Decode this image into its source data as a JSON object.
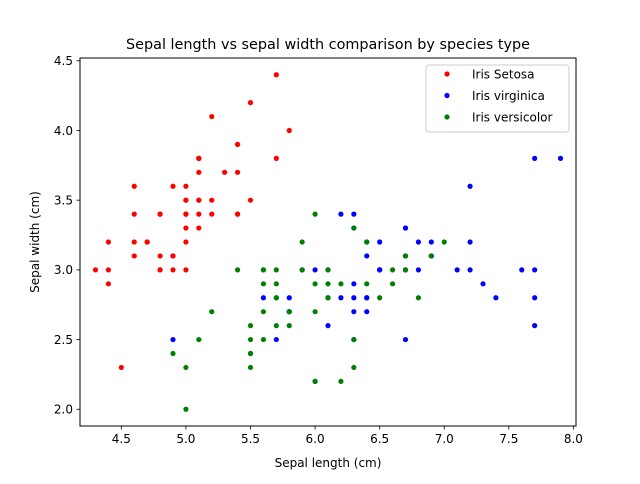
{
  "chart_data": {
    "type": "scatter",
    "title": "Sepal length vs sepal width comparison by species type",
    "xlabel": "Sepal length (cm)",
    "ylabel": "Sepal width (cm)",
    "xlim": [
      4.18,
      8.02
    ],
    "ylim": [
      1.88,
      4.52
    ],
    "xticks": [
      4.5,
      5.0,
      5.5,
      6.0,
      6.5,
      7.0,
      7.5,
      8.0
    ],
    "xtick_labels": [
      "4.5",
      "5.0",
      "5.5",
      "6.0",
      "6.5",
      "7.0",
      "7.5",
      "8.0"
    ],
    "yticks": [
      2.0,
      2.5,
      3.0,
      3.5,
      4.0,
      4.5
    ],
    "ytick_labels": [
      "2.0",
      "2.5",
      "3.0",
      "3.5",
      "4.0",
      "4.5"
    ],
    "grid": false,
    "legend_position": "top-right",
    "series": [
      {
        "name": "Iris Setosa",
        "color": "#ff0000",
        "points": [
          [
            5.1,
            3.5
          ],
          [
            4.9,
            3.0
          ],
          [
            4.7,
            3.2
          ],
          [
            4.6,
            3.1
          ],
          [
            5.0,
            3.6
          ],
          [
            5.4,
            3.9
          ],
          [
            4.6,
            3.4
          ],
          [
            5.0,
            3.4
          ],
          [
            4.4,
            2.9
          ],
          [
            4.9,
            3.1
          ],
          [
            5.4,
            3.7
          ],
          [
            4.8,
            3.4
          ],
          [
            4.8,
            3.0
          ],
          [
            4.3,
            3.0
          ],
          [
            5.8,
            4.0
          ],
          [
            5.7,
            4.4
          ],
          [
            5.4,
            3.9
          ],
          [
            5.1,
            3.5
          ],
          [
            5.7,
            3.8
          ],
          [
            5.1,
            3.8
          ],
          [
            5.4,
            3.4
          ],
          [
            5.1,
            3.7
          ],
          [
            4.6,
            3.6
          ],
          [
            5.1,
            3.3
          ],
          [
            4.8,
            3.4
          ],
          [
            5.0,
            3.0
          ],
          [
            5.0,
            3.4
          ],
          [
            5.2,
            3.5
          ],
          [
            5.2,
            3.4
          ],
          [
            4.7,
            3.2
          ],
          [
            4.8,
            3.1
          ],
          [
            5.4,
            3.4
          ],
          [
            5.2,
            4.1
          ],
          [
            5.5,
            4.2
          ],
          [
            4.9,
            3.1
          ],
          [
            5.0,
            3.2
          ],
          [
            5.5,
            3.5
          ],
          [
            4.9,
            3.6
          ],
          [
            4.4,
            3.0
          ],
          [
            5.1,
            3.4
          ],
          [
            5.0,
            3.5
          ],
          [
            4.5,
            2.3
          ],
          [
            4.4,
            3.2
          ],
          [
            5.0,
            3.5
          ],
          [
            5.1,
            3.8
          ],
          [
            4.8,
            3.0
          ],
          [
            5.1,
            3.8
          ],
          [
            4.6,
            3.2
          ],
          [
            5.3,
            3.7
          ],
          [
            5.0,
            3.3
          ]
        ]
      },
      {
        "name": "Iris virginica",
        "color": "#0000ff",
        "points": [
          [
            6.3,
            3.3
          ],
          [
            5.8,
            2.7
          ],
          [
            7.1,
            3.0
          ],
          [
            6.3,
            2.9
          ],
          [
            6.5,
            3.0
          ],
          [
            7.6,
            3.0
          ],
          [
            4.9,
            2.5
          ],
          [
            7.3,
            2.9
          ],
          [
            6.7,
            2.5
          ],
          [
            7.2,
            3.6
          ],
          [
            6.5,
            3.2
          ],
          [
            6.4,
            2.7
          ],
          [
            6.8,
            3.0
          ],
          [
            5.7,
            2.5
          ],
          [
            5.8,
            2.8
          ],
          [
            6.4,
            3.2
          ],
          [
            6.5,
            3.0
          ],
          [
            7.7,
            3.8
          ],
          [
            7.7,
            2.6
          ],
          [
            6.0,
            2.2
          ],
          [
            6.9,
            3.2
          ],
          [
            5.6,
            2.8
          ],
          [
            7.7,
            2.8
          ],
          [
            6.3,
            2.7
          ],
          [
            6.7,
            3.3
          ],
          [
            7.2,
            3.2
          ],
          [
            6.2,
            2.8
          ],
          [
            6.1,
            3.0
          ],
          [
            6.4,
            2.8
          ],
          [
            7.2,
            3.0
          ],
          [
            7.4,
            2.8
          ],
          [
            7.9,
            3.8
          ],
          [
            6.4,
            2.8
          ],
          [
            6.3,
            2.8
          ],
          [
            6.1,
            2.6
          ],
          [
            7.7,
            3.0
          ],
          [
            6.3,
            3.4
          ],
          [
            6.4,
            3.1
          ],
          [
            6.0,
            3.0
          ],
          [
            6.9,
            3.1
          ],
          [
            6.7,
            3.1
          ],
          [
            6.9,
            3.1
          ],
          [
            5.8,
            2.7
          ],
          [
            6.8,
            3.2
          ],
          [
            6.7,
            3.3
          ],
          [
            6.7,
            3.0
          ],
          [
            6.3,
            2.5
          ],
          [
            6.5,
            3.0
          ],
          [
            6.2,
            3.4
          ],
          [
            5.9,
            3.0
          ]
        ]
      },
      {
        "name": "Iris versicolor",
        "color": "#008000",
        "points": [
          [
            7.0,
            3.2
          ],
          [
            6.4,
            3.2
          ],
          [
            6.9,
            3.1
          ],
          [
            5.5,
            2.3
          ],
          [
            6.5,
            2.8
          ],
          [
            5.7,
            2.8
          ],
          [
            6.3,
            3.3
          ],
          [
            4.9,
            2.4
          ],
          [
            6.6,
            2.9
          ],
          [
            5.2,
            2.7
          ],
          [
            5.0,
            2.0
          ],
          [
            5.9,
            3.0
          ],
          [
            6.0,
            2.2
          ],
          [
            6.1,
            2.9
          ],
          [
            5.6,
            2.9
          ],
          [
            6.7,
            3.1
          ],
          [
            5.6,
            3.0
          ],
          [
            5.8,
            2.7
          ],
          [
            6.2,
            2.2
          ],
          [
            5.6,
            2.5
          ],
          [
            5.9,
            3.2
          ],
          [
            6.1,
            2.8
          ],
          [
            6.3,
            2.5
          ],
          [
            6.1,
            2.8
          ],
          [
            6.4,
            2.9
          ],
          [
            6.6,
            3.0
          ],
          [
            6.8,
            2.8
          ],
          [
            6.7,
            3.0
          ],
          [
            6.0,
            2.9
          ],
          [
            5.7,
            2.6
          ],
          [
            5.5,
            2.4
          ],
          [
            5.5,
            2.4
          ],
          [
            5.8,
            2.7
          ],
          [
            6.0,
            2.7
          ],
          [
            5.4,
            3.0
          ],
          [
            6.0,
            3.4
          ],
          [
            6.7,
            3.1
          ],
          [
            6.3,
            2.3
          ],
          [
            5.6,
            3.0
          ],
          [
            5.5,
            2.5
          ],
          [
            5.5,
            2.6
          ],
          [
            6.1,
            3.0
          ],
          [
            5.8,
            2.6
          ],
          [
            5.0,
            2.3
          ],
          [
            5.6,
            2.7
          ],
          [
            5.7,
            3.0
          ],
          [
            5.7,
            2.9
          ],
          [
            6.2,
            2.9
          ],
          [
            5.1,
            2.5
          ],
          [
            5.7,
            2.8
          ]
        ]
      }
    ]
  }
}
